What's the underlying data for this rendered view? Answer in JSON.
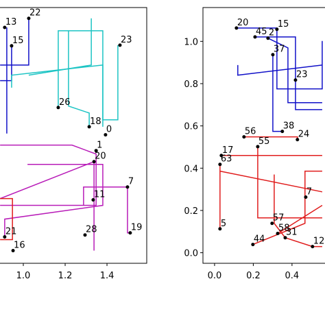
{
  "chart_data": [
    {
      "type": "scatter",
      "xlim": [
        0.85,
        1.59
      ],
      "ylim": [
        -0.05,
        1.16
      ],
      "xticks": [
        {
          "value": 1.0,
          "label": "1.0"
        },
        {
          "value": 1.2,
          "label": "1.2"
        },
        {
          "value": 1.4,
          "label": "1.4"
        }
      ],
      "points": {
        "color": "#000000",
        "labels": [
          "22",
          "13",
          "15",
          "23",
          "26",
          "18",
          "0",
          "1",
          "20",
          "7",
          "11",
          "28",
          "19",
          "21",
          "16"
        ],
        "x": [
          1.026,
          0.911,
          0.944,
          1.462,
          1.167,
          1.315,
          1.393,
          1.348,
          1.338,
          1.498,
          1.334,
          1.295,
          1.511,
          0.911,
          0.951
        ],
        "y": [
          1.109,
          1.066,
          0.979,
          0.982,
          0.687,
          0.596,
          0.558,
          0.483,
          0.431,
          0.311,
          0.25,
          0.084,
          0.094,
          0.075,
          0.01
        ]
      },
      "lines": [
        {
          "color": "#1010c8",
          "x": [
            1.026,
            1.026,
            0.889
          ],
          "y": [
            1.109,
            0.888,
            0.888
          ]
        },
        {
          "color": "#1010c8",
          "x": [
            0.921,
            0.921
          ],
          "y": [
            1.066,
            0.564
          ]
        },
        {
          "color": "#1010c8",
          "x": [
            0.889,
            0.944,
            0.944
          ],
          "y": [
            0.814,
            0.814,
            0.979
          ]
        },
        {
          "color": "#1cc4c4",
          "x": [
            0.944,
            0.944,
            1.38,
            1.38,
            1.452,
            1.452
          ],
          "y": [
            0.781,
            0.84,
            0.888,
            0.629,
            0.629,
            0.982
          ]
        },
        {
          "color": "#1cc4c4",
          "x": [
            1.167,
            1.167,
            1.38,
            1.38
          ],
          "y": [
            0.687,
            1.05,
            1.05,
            0.596
          ]
        },
        {
          "color": "#1cc4c4",
          "x": [
            1.216,
            1.216,
            1.315,
            1.315
          ],
          "y": [
            1.05,
            0.694,
            0.661,
            0.596
          ]
        },
        {
          "color": "#1cc4c4",
          "x": [
            1.325,
            1.325,
            1.026
          ],
          "y": [
            1.109,
            0.888,
            0.84
          ]
        },
        {
          "color": "#b81cb8",
          "x": [
            0.889,
            1.233,
            1.348,
            1.348,
            0.889
          ],
          "y": [
            0.509,
            0.509,
            0.467,
            0.224,
            0.224
          ]
        },
        {
          "color": "#b81cb8",
          "x": [
            0.889,
            1.338,
            1.338
          ],
          "y": [
            0.256,
            0.431,
            0.01
          ]
        },
        {
          "color": "#b81cb8",
          "x": [
            1.288,
            1.288,
            1.498,
            1.498,
            1.511
          ],
          "y": [
            0.224,
            0.311,
            0.311,
            0.094,
            0.094
          ]
        },
        {
          "color": "#b81cb8",
          "x": [
            0.911,
            0.911,
            1.38,
            1.38,
            1.02
          ],
          "y": [
            0.075,
            0.159,
            0.224,
            0.418,
            0.418
          ]
        },
        {
          "color": "#e01c1c",
          "x": [
            0.889,
            0.948,
            0.948,
            0.889
          ],
          "y": [
            0.256,
            0.256,
            0.062,
            0.062
          ]
        }
      ]
    },
    {
      "type": "scatter",
      "xlim": [
        -0.06,
        0.62
      ],
      "ylim": [
        -0.05,
        1.16
      ],
      "xticks": [
        {
          "value": 0.0,
          "label": "0.0"
        },
        {
          "value": 0.2,
          "label": "0.2"
        },
        {
          "value": 0.4,
          "label": "0.4"
        }
      ],
      "yticks": [
        {
          "value": 0.0,
          "label": "0.0"
        },
        {
          "value": 0.2,
          "label": "0.2"
        },
        {
          "value": 0.4,
          "label": "0.4"
        },
        {
          "value": 0.6,
          "label": "0.6"
        },
        {
          "value": 0.8,
          "label": "0.8"
        },
        {
          "value": 1.0,
          "label": "1.0"
        }
      ],
      "points": {
        "color": "#000000",
        "labels": [
          "20",
          "45",
          "2",
          "15",
          "37",
          "23",
          "38",
          "24",
          "56",
          "55",
          "17",
          "63",
          "7",
          "5",
          "57",
          "58",
          "31",
          "44",
          "12"
        ],
        "x": [
          0.113,
          0.209,
          0.276,
          0.322,
          0.301,
          0.418,
          0.35,
          0.428,
          0.152,
          0.223,
          0.035,
          0.028,
          0.471,
          0.028,
          0.297,
          0.326,
          0.365,
          0.198,
          0.506
        ],
        "y": [
          1.063,
          1.021,
          1.015,
          1.057,
          0.937,
          0.817,
          0.574,
          0.535,
          0.548,
          0.502,
          0.46,
          0.418,
          0.263,
          0.113,
          0.139,
          0.091,
          0.071,
          0.039,
          0.029
        ]
      },
      "lines": [
        {
          "color": "#1010c8",
          "x": [
            0.113,
            0.322,
            0.322,
            0.556,
            0.556
          ],
          "y": [
            1.063,
            1.063,
            0.775,
            0.775,
            1.002
          ]
        },
        {
          "color": "#1010c8",
          "x": [
            0.209,
            0.418,
            0.418,
            0.556
          ],
          "y": [
            1.021,
            1.021,
            0.677,
            0.677
          ]
        },
        {
          "color": "#1010c8",
          "x": [
            0.12,
            0.12,
            0.556
          ],
          "y": [
            0.888,
            0.84,
            0.888
          ]
        },
        {
          "color": "#1010c8",
          "x": [
            0.301,
            0.301,
            0.35
          ],
          "y": [
            0.937,
            0.574,
            0.574
          ]
        },
        {
          "color": "#1010c8",
          "x": [
            0.276,
            0.379,
            0.379,
            0.556
          ],
          "y": [
            1.015,
            0.969,
            0.71,
            0.71
          ]
        },
        {
          "color": "#e01c1c",
          "x": [
            0.152,
            0.428,
            0.428
          ],
          "y": [
            0.548,
            0.548,
            0.535
          ]
        },
        {
          "color": "#e01c1c",
          "x": [
            0.035,
            0.556
          ],
          "y": [
            0.46,
            0.46
          ]
        },
        {
          "color": "#e01c1c",
          "x": [
            0.223,
            0.223,
            0.556
          ],
          "y": [
            0.502,
            0.165,
            0.165
          ]
        },
        {
          "color": "#e01c1c",
          "x": [
            0.028,
            0.028
          ],
          "y": [
            0.418,
            0.113
          ]
        },
        {
          "color": "#e01c1c",
          "x": [
            0.198,
            0.467,
            0.467,
            0.556
          ],
          "y": [
            0.039,
            0.139,
            0.386,
            0.386
          ]
        },
        {
          "color": "#e01c1c",
          "x": [
            0.308,
            0.308,
            0.365,
            0.506,
            0.556
          ],
          "y": [
            0.37,
            0.139,
            0.071,
            0.029,
            0.029
          ]
        },
        {
          "color": "#e01c1c",
          "x": [
            0.028,
            0.556
          ],
          "y": [
            0.386,
            0.288
          ]
        },
        {
          "color": "#e01c1c",
          "x": [
            0.326,
            0.556
          ],
          "y": [
            0.091,
            0.224
          ]
        }
      ]
    }
  ]
}
